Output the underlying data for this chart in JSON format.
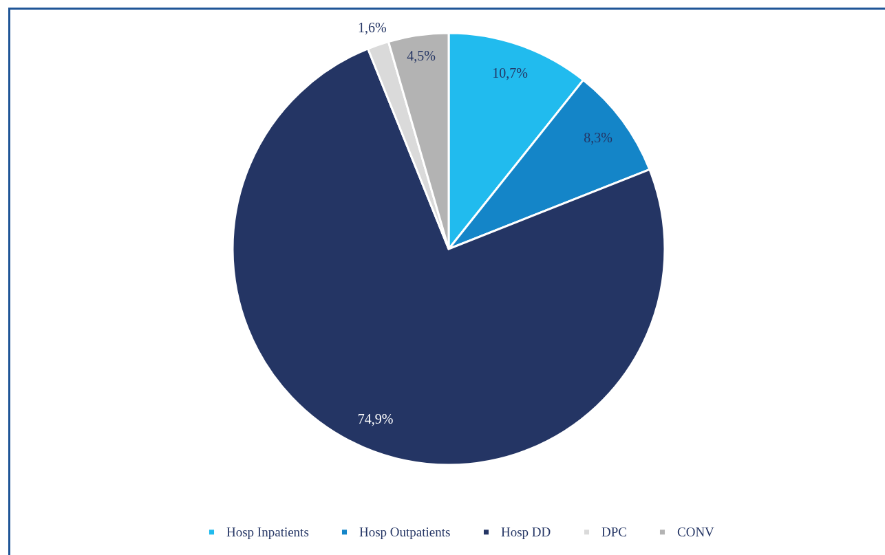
{
  "chart_data": {
    "type": "pie",
    "categories": [
      "Hosp Inpatients",
      "Hosp Outpatients",
      "Hosp DD",
      "DPC",
      "CONV"
    ],
    "values": [
      10.7,
      8.3,
      74.9,
      1.6,
      4.5
    ],
    "colors": [
      "#21bbee",
      "#1485c8",
      "#243564",
      "#dadada",
      "#b3b3b3"
    ],
    "value_labels": [
      "10,7%",
      "8,3%",
      "74,9%",
      "1,6%",
      "4,5%"
    ],
    "legend": "bottom"
  }
}
